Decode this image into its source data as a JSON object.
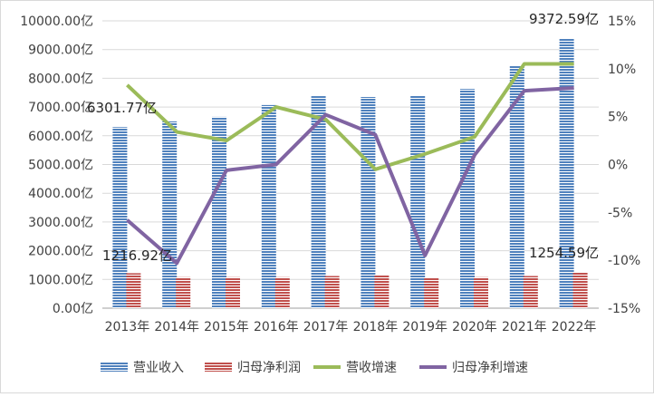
{
  "chart_data": {
    "type": "bar",
    "categories": [
      "2013年",
      "2014年",
      "2015年",
      "2016年",
      "2017年",
      "2018年",
      "2019年",
      "2020年",
      "2021年",
      "2022年"
    ],
    "series": [
      {
        "name": "营业收入",
        "kind": "bar",
        "axis": "left",
        "color": "#4f81bd",
        "values": [
          6301.77,
          6500,
          6660,
          7070,
          7380,
          7350,
          7410,
          7630,
          8450,
          9372.59
        ]
      },
      {
        "name": "归母净利润",
        "kind": "bar",
        "axis": "left",
        "color": "#c0504d",
        "values": [
          1216.92,
          1080,
          1080,
          1080,
          1120,
          1150,
          1050,
          1080,
          1120,
          1254.59
        ]
      },
      {
        "name": "营收增速",
        "kind": "line",
        "axis": "right",
        "color": "#9bbb59",
        "values": [
          8.3,
          3.4,
          2.5,
          6.0,
          4.7,
          -0.5,
          1.1,
          2.9,
          10.5,
          10.5
        ]
      },
      {
        "name": "归母净利增速",
        "kind": "line",
        "axis": "right",
        "color": "#8064a2",
        "values": [
          -5.8,
          -10.3,
          -0.6,
          0.0,
          5.2,
          3.1,
          -9.5,
          1.0,
          7.7,
          8.0
        ]
      }
    ],
    "left_axis": {
      "min": 0,
      "max": 10000,
      "ticks": [
        "0.00亿",
        "1000.00亿",
        "2000.00亿",
        "3000.00亿",
        "4000.00亿",
        "5000.00亿",
        "6000.00亿",
        "7000.00亿",
        "8000.00亿",
        "9000.00亿",
        "10000.00亿"
      ]
    },
    "right_axis": {
      "min": -15,
      "max": 15,
      "ticks": [
        "-15%",
        "-10%",
        "-5%",
        "0%",
        "5%",
        "10%",
        "15%"
      ]
    },
    "data_labels": [
      "6301.77亿",
      "9372.59亿",
      "1216.92亿",
      "1254.59亿"
    ],
    "legend_position": "bottom",
    "grid": true
  }
}
